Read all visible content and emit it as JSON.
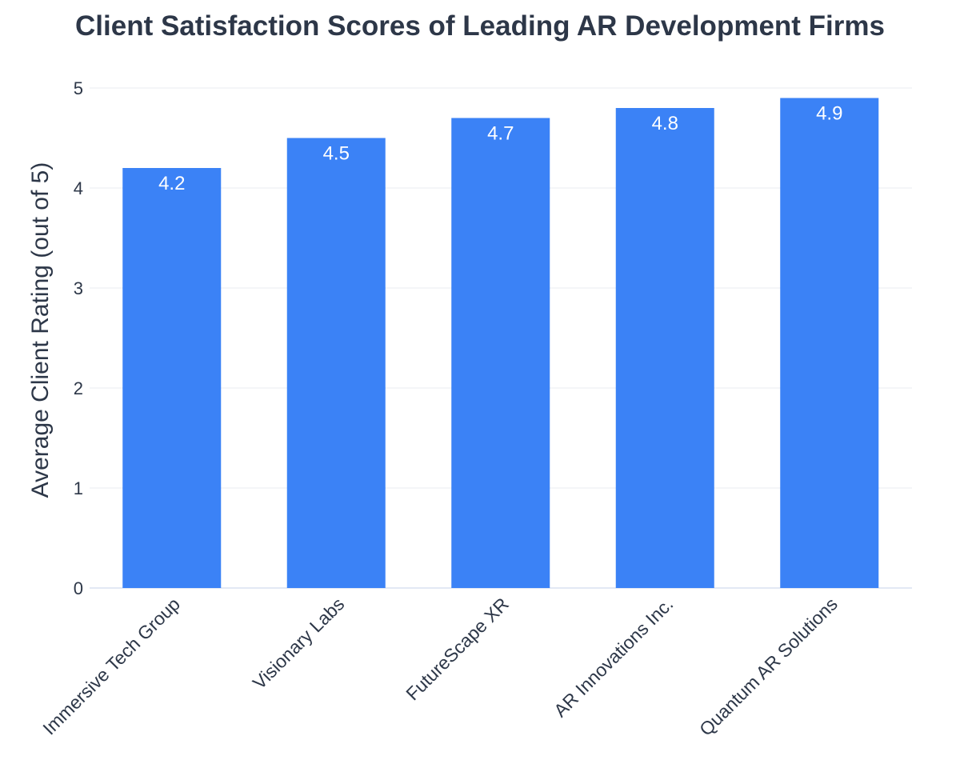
{
  "chart_data": {
    "type": "bar",
    "title": "Client Satisfaction Scores of Leading AR Development Firms",
    "xlabel": "",
    "ylabel": "Average Client Rating (out of 5)",
    "categories": [
      "Immersive Tech Group",
      "Visionary Labs",
      "FutureScape XR",
      "AR Innovations Inc.",
      "Quantum AR Solutions"
    ],
    "values": [
      4.2,
      4.5,
      4.7,
      4.8,
      4.9
    ],
    "data_labels": [
      "4.2",
      "4.5",
      "4.7",
      "4.8",
      "4.9"
    ],
    "ylim": [
      0,
      5
    ],
    "yticks": [
      0,
      1,
      2,
      3,
      4,
      5
    ],
    "grid": true,
    "legend": "none",
    "colors": {
      "bar": "#3b82f6",
      "text": "#2d3748",
      "data_label": "#ffffff",
      "grid": "#e8ecf2"
    }
  }
}
